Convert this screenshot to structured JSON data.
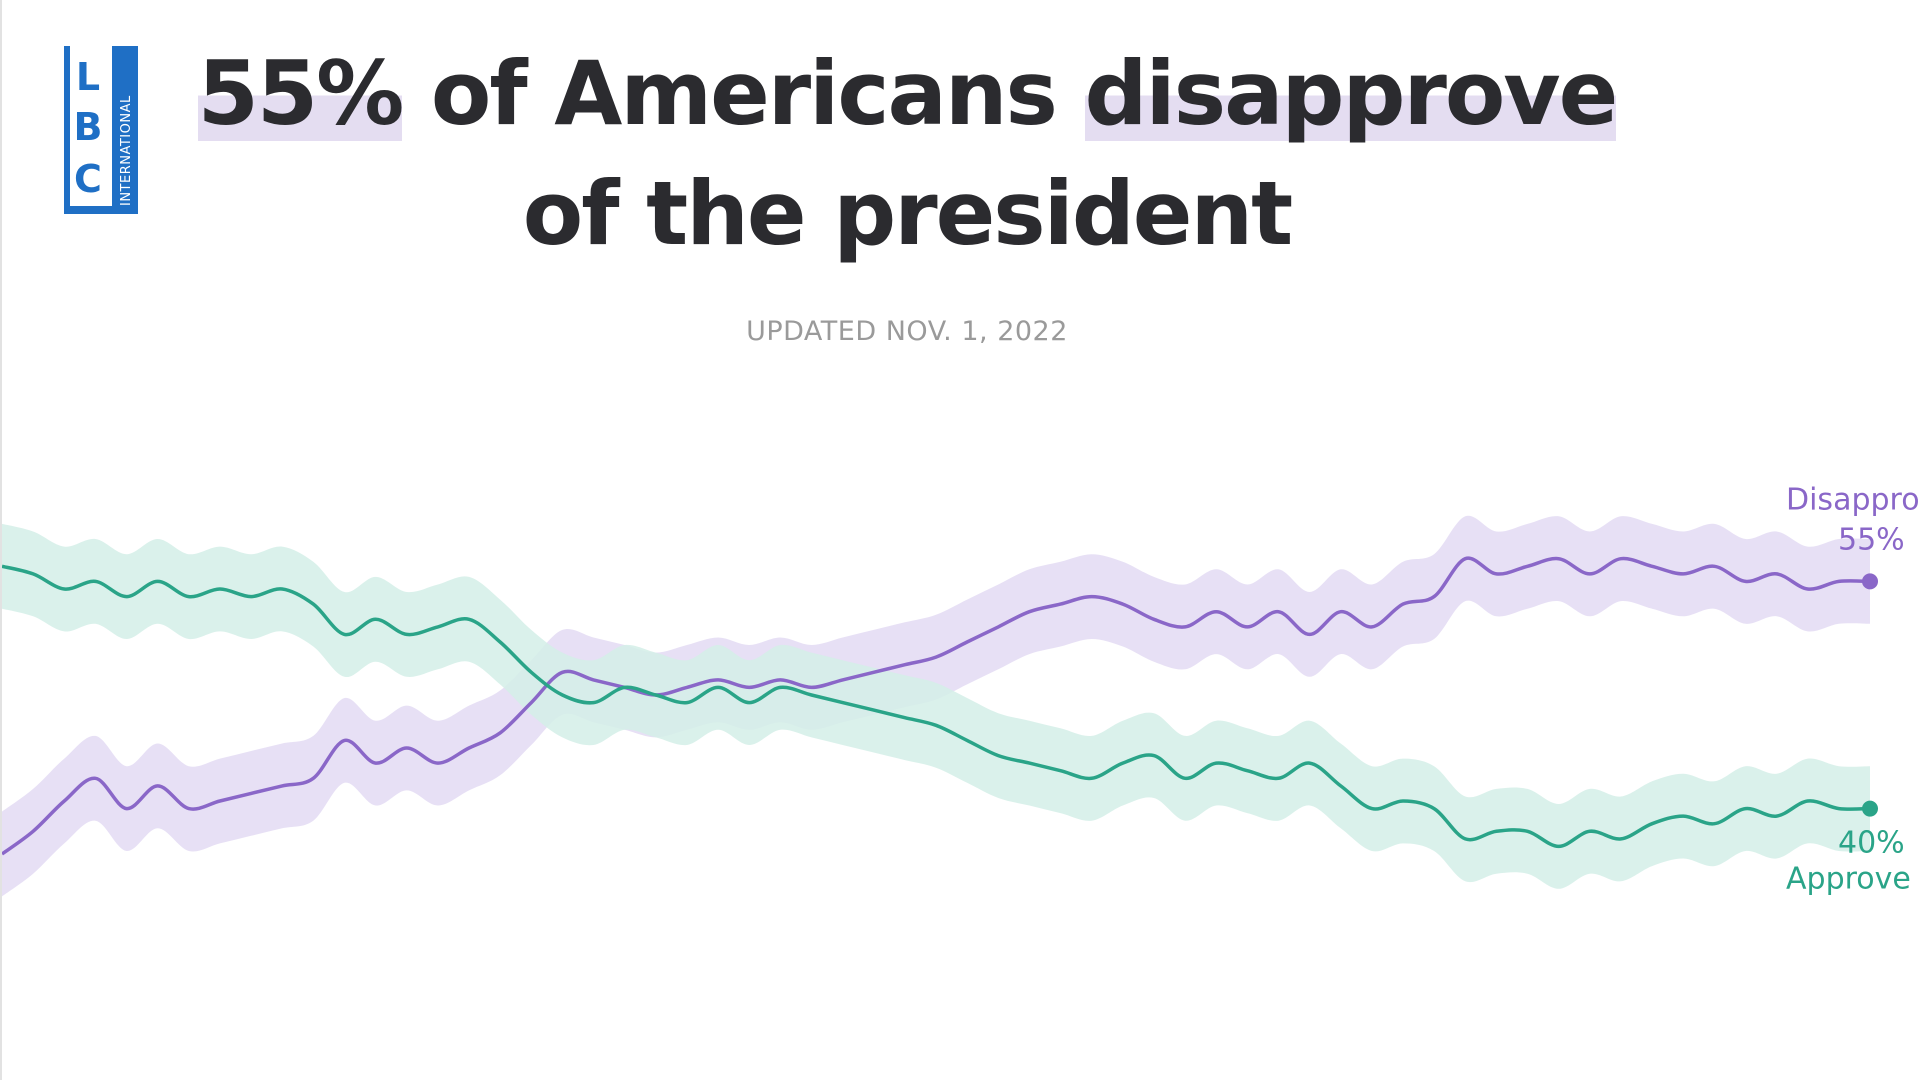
{
  "brand": {
    "logo_letters": [
      "L",
      "B",
      "C"
    ],
    "logo_sub": "INTERNATIONAL",
    "logo_color": "#1f6fc5"
  },
  "headline": {
    "part1": "55%",
    "part2": " of Americans ",
    "part3": "disapprove",
    "line2": "of the president"
  },
  "updated": "UPDATED NOV. 1, 2022",
  "colors": {
    "disapprove_line": "#8a67c8",
    "disapprove_band": "#e3daf3",
    "approve_line": "#2aa488",
    "approve_band": "#d4efe7",
    "title_highlight": "#e4ddf1"
  },
  "chart_data": {
    "type": "line",
    "title": "55% of Americans disapprove of the president",
    "subtitle": "UPDATED NOV. 1, 2022",
    "ylim": [
      30,
      65
    ],
    "grid": false,
    "legend": "end-labels-right",
    "x": [
      0,
      1,
      2,
      3,
      4,
      5,
      6,
      7,
      8,
      9,
      10,
      11,
      12,
      13,
      14,
      15,
      16,
      17,
      18,
      19,
      20,
      21,
      22,
      23,
      24,
      25,
      26,
      27,
      28,
      29,
      30,
      31,
      32,
      33,
      34,
      35,
      36,
      37,
      38,
      39,
      40,
      41,
      42,
      43,
      44,
      45,
      46,
      47,
      48,
      49,
      50,
      51,
      52,
      53,
      54,
      55,
      56,
      57,
      58,
      59,
      60
    ],
    "series": [
      {
        "name": "Disapprove",
        "end_label": "Disapprove",
        "end_value_label": "55%",
        "color": "#8a67c8",
        "band_halfwidth": 2.8,
        "values": [
          37.0,
          38.5,
          40.5,
          42.0,
          40.0,
          41.5,
          40.0,
          40.5,
          41.0,
          41.5,
          42.0,
          44.5,
          43.0,
          44.0,
          43.0,
          44.0,
          45.0,
          47.0,
          49.0,
          48.5,
          48.0,
          47.5,
          48.0,
          48.5,
          48.0,
          48.5,
          48.0,
          48.5,
          49.0,
          49.5,
          50.0,
          51.0,
          52.0,
          53.0,
          53.5,
          54.0,
          53.5,
          52.5,
          52.0,
          53.0,
          52.0,
          53.0,
          51.5,
          53.0,
          52.0,
          53.5,
          54.0,
          56.5,
          55.5,
          56.0,
          56.5,
          55.5,
          56.5,
          56.0,
          55.5,
          56.0,
          55.0,
          55.5,
          54.5,
          55.0,
          55.0
        ]
      },
      {
        "name": "Approve",
        "end_label": "Approve",
        "end_value_label": "40%",
        "color": "#2aa488",
        "band_halfwidth": 2.8,
        "values": [
          56.0,
          55.5,
          54.5,
          55.0,
          54.0,
          55.0,
          54.0,
          54.5,
          54.0,
          54.5,
          53.5,
          51.5,
          52.5,
          51.5,
          52.0,
          52.5,
          51.0,
          49.0,
          47.5,
          47.0,
          48.0,
          47.5,
          47.0,
          48.0,
          47.0,
          48.0,
          47.5,
          47.0,
          46.5,
          46.0,
          45.5,
          44.5,
          43.5,
          43.0,
          42.5,
          42.0,
          43.0,
          43.5,
          42.0,
          43.0,
          42.5,
          42.0,
          43.0,
          41.5,
          40.0,
          40.5,
          40.0,
          38.0,
          38.5,
          38.5,
          37.5,
          38.5,
          38.0,
          39.0,
          39.5,
          39.0,
          40.0,
          39.5,
          40.5,
          40.0,
          40.0
        ]
      }
    ]
  }
}
